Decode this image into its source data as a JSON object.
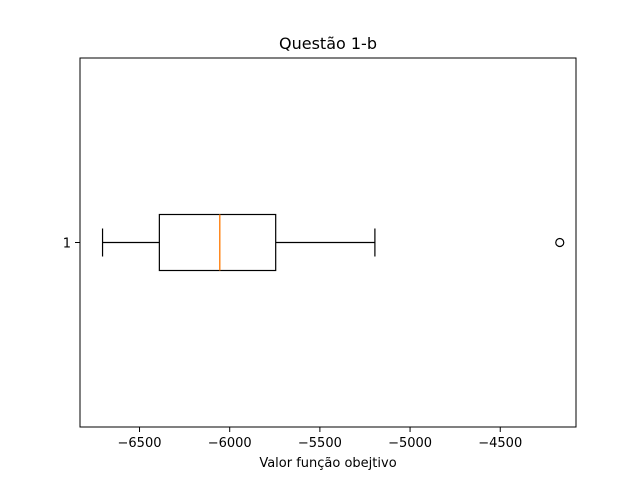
{
  "chart_data": {
    "type": "boxplot",
    "orientation": "horizontal",
    "title": "Questão 1-b",
    "xlabel": "Valor função obejtivo",
    "ylabel": "",
    "xlim": [
      -6830,
      -4080
    ],
    "ylim": [
      0.5,
      1.5
    ],
    "grid": false,
    "x_ticks": [
      -6500,
      -6000,
      -5500,
      -5000,
      -4500
    ],
    "x_tick_labels": [
      "−6500",
      "−6000",
      "−5500",
      "−5000",
      "−4500"
    ],
    "y_ticks": [
      1
    ],
    "y_tick_labels": [
      "1"
    ],
    "boxes": [
      {
        "label": "1",
        "position": 1,
        "whisker_low": -6705,
        "q1": -6390,
        "median": -6055,
        "q3": -5745,
        "whisker_high": -5195,
        "outliers": [
          -4170
        ]
      }
    ],
    "colors": {
      "box": "#000000",
      "median": "#ff7f0e",
      "whisker": "#000000",
      "outlier": "#000000"
    }
  }
}
